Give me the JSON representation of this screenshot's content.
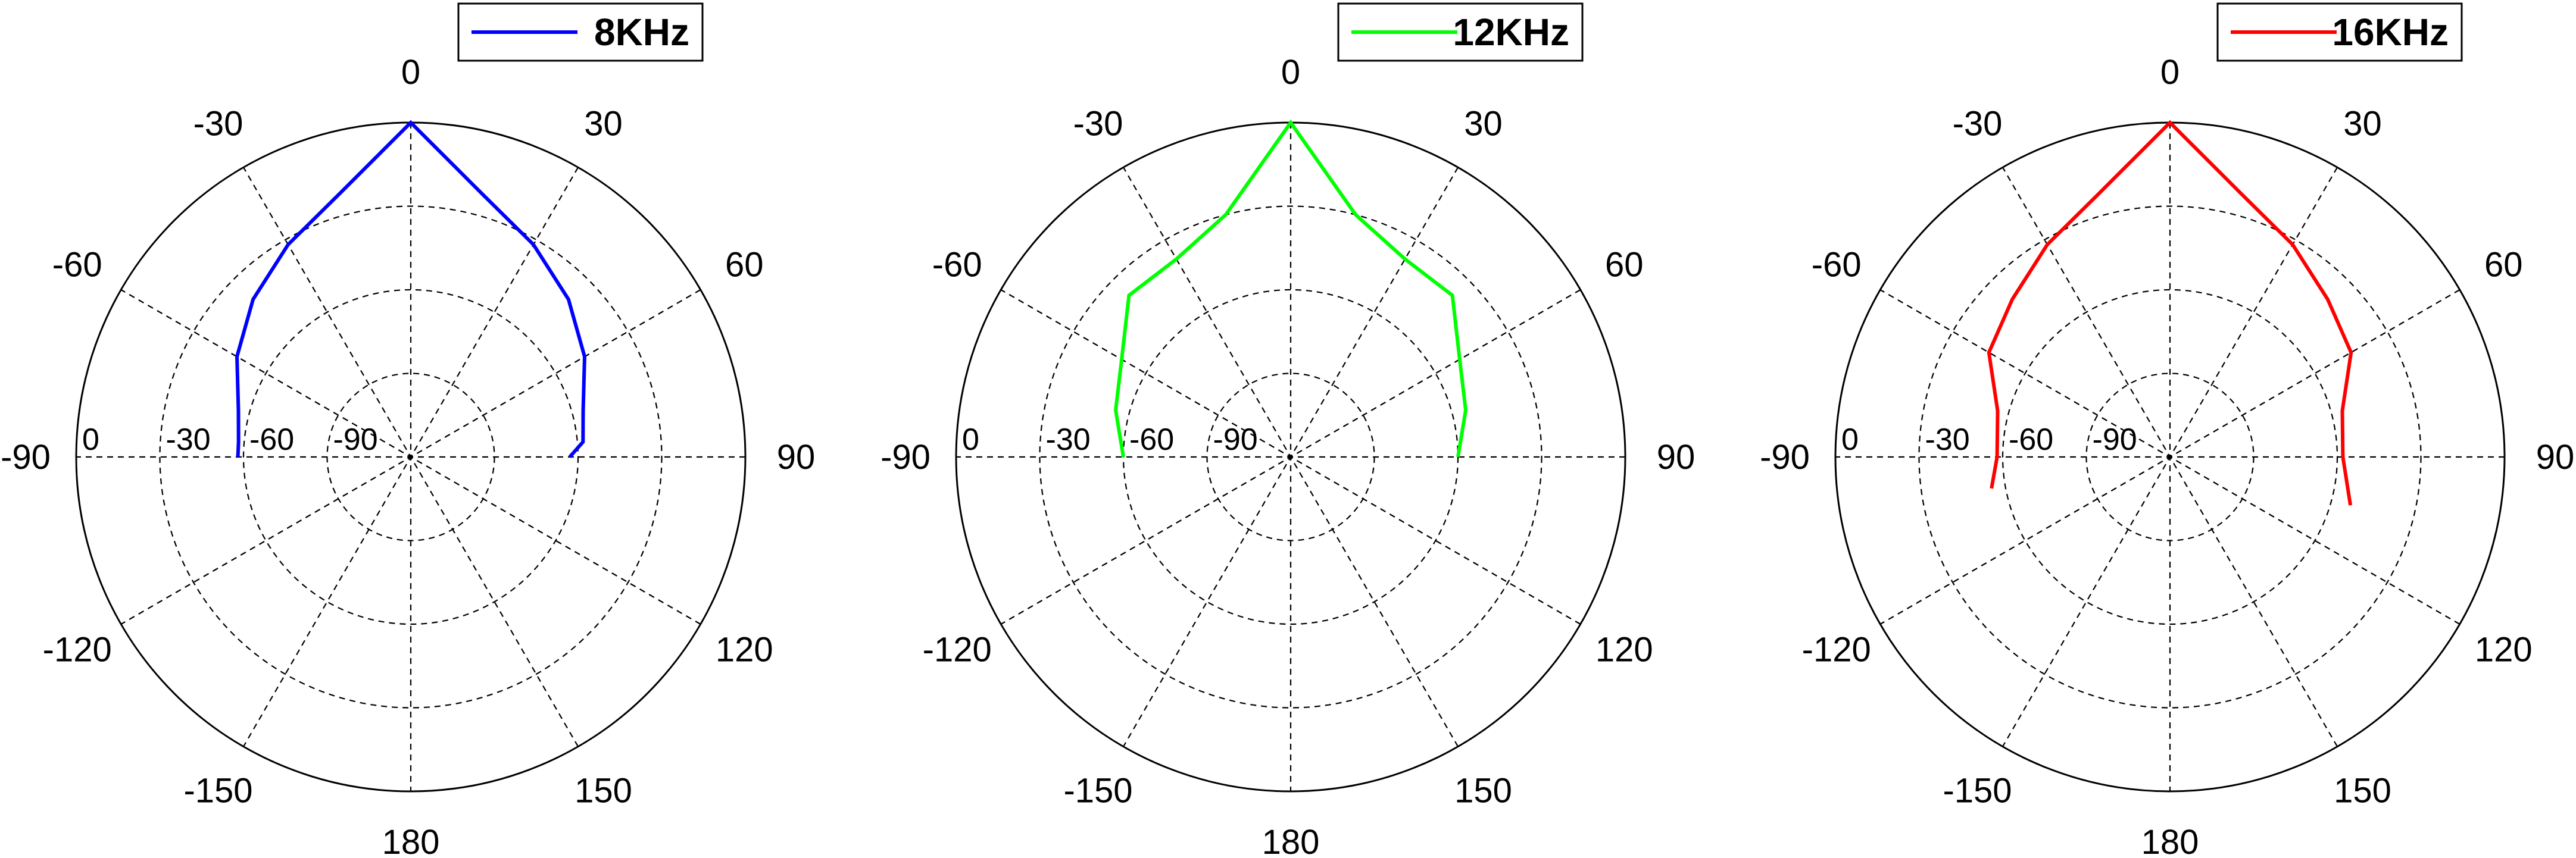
{
  "chart_data": [
    {
      "type": "polar-line",
      "theta_zero": "top",
      "theta_direction": "clockwise",
      "angle_ticks": [
        0,
        30,
        60,
        90,
        120,
        150,
        180,
        -150,
        -120,
        -90,
        -60,
        -30
      ],
      "radial_ticks": [
        0,
        -30,
        -60,
        -90
      ],
      "rlim": [
        -120,
        0
      ],
      "radial_axis_direction": "towards -90",
      "grid": true,
      "legend": "top-right",
      "series": [
        {
          "name": "8KHz",
          "color": "#0000ff",
          "theta": [
            -90,
            -85,
            -75,
            -60,
            -45,
            -30,
            -15,
            0,
            15,
            30,
            45,
            60,
            75,
            85,
            90
          ],
          "r": [
            -58,
            -58,
            -56,
            -48,
            -40,
            -32,
            -22,
            0,
            -22,
            -32,
            -40,
            -48,
            -56,
            -58,
            -63
          ]
        }
      ]
    },
    {
      "type": "polar-line",
      "theta_zero": "top",
      "theta_direction": "clockwise",
      "angle_ticks": [
        0,
        30,
        60,
        90,
        120,
        150,
        180,
        -150,
        -120,
        -90,
        -60,
        -30
      ],
      "radial_ticks": [
        0,
        -30,
        -60,
        -90
      ],
      "rlim": [
        -120,
        0
      ],
      "radial_axis_direction": "towards -90",
      "grid": true,
      "legend": "top-right",
      "series": [
        {
          "name": "12KHz",
          "color": "#00ff00",
          "theta": [
            -90,
            -75,
            -60,
            -45,
            -30,
            -15,
            0,
            15,
            30,
            45,
            60,
            75,
            90
          ],
          "r": [
            -60,
            -55,
            -50,
            -38,
            -38,
            -30,
            0,
            -30,
            -38,
            -38,
            -50,
            -55,
            -60
          ]
        }
      ]
    },
    {
      "type": "polar-line",
      "theta_zero": "top",
      "theta_direction": "clockwise",
      "angle_ticks": [
        0,
        30,
        60,
        90,
        120,
        150,
        180,
        -150,
        -120,
        -90,
        -60,
        -30
      ],
      "radial_ticks": [
        0,
        -30,
        -60,
        -90
      ],
      "rlim": [
        -120,
        0
      ],
      "radial_axis_direction": "towards -90",
      "grid": true,
      "legend": "top-right",
      "series": [
        {
          "name": "16KHz",
          "color": "#ff0000",
          "theta": [
            -100,
            -90,
            -75,
            -60,
            -45,
            -30,
            -15,
            0,
            15,
            30,
            45,
            60,
            75,
            90,
            105
          ],
          "r": [
            -55,
            -58,
            -56,
            -45,
            -40,
            -32,
            -22,
            0,
            -22,
            -32,
            -40,
            -45,
            -56,
            -58,
            -53
          ]
        }
      ]
    }
  ]
}
